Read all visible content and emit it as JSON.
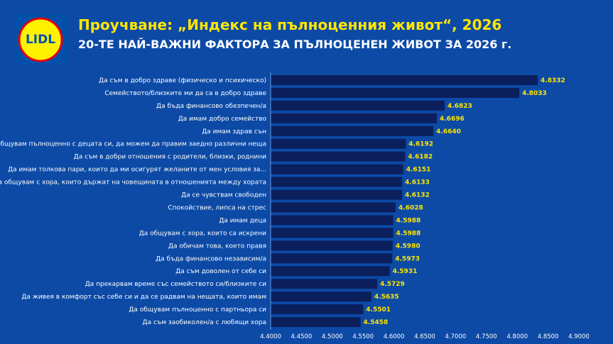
{
  "header": {
    "title": "Проучване: „Индекс на пълноценния живот“, 2026",
    "subtitle": "20-ТЕ НАЙ-ВАЖНИ ФАКТОРА ЗА ПЪЛНОЦЕНЕН ЖИВОТ ЗА 2026 г."
  },
  "logo": {
    "text": "LIDL"
  },
  "colors": {
    "background": "#0c4aa6",
    "bar": "#0b1f5c",
    "value": "#ffe600",
    "title": "#ffe600",
    "text": "#ffffff"
  },
  "chart_data": {
    "type": "bar",
    "orientation": "horizontal",
    "categories": [
      "Да съм в добро здраве (физическо и психическо)",
      "Семейството/близките ми да са в добро здраве",
      "Да бъда финансово обезпечен/а",
      "Да имам добро семейство",
      "Да имам здрав сън",
      "Да общувам пълноценно с децата си, да можем да правим заедно различни неща",
      "Да съм в добри отношения с родители, близки, роднини",
      "Да имам толкова пари, които да ми осигурят желаните от мен условия за...",
      "Да общувам с хора, които държат на човещината в отношенията между хората",
      "Да се чувствам свободен",
      "Спокойствие, липса на стрес",
      "Да имам деца",
      "Да общувам с хора, които са искрени",
      "Да обичам това, което правя",
      "Да бъда финансово независим/а",
      "Да съм доволен от себе си",
      "Да прекарвам време със семейството си/близките си",
      "Да живея в комфорт със себе си и да се радвам на нещата, които имам",
      "Да общувам пълноценно с партньора си",
      "Да съм заобиколен/а с любящи хора"
    ],
    "values": [
      4.8332,
      4.8033,
      4.6823,
      4.6696,
      4.664,
      4.6192,
      4.6182,
      4.6151,
      4.6133,
      4.6132,
      4.6028,
      4.5988,
      4.5988,
      4.598,
      4.5973,
      4.5931,
      4.5729,
      4.5635,
      4.5501,
      4.5458
    ],
    "value_labels": [
      "4.8332",
      "4.8033",
      "4.6823",
      "4.6696",
      "4.6640",
      "4.6192",
      "4.6182",
      "4.6151",
      "4.6133",
      "4.6132",
      "4.6028",
      "4.5988",
      "4.5988",
      "4.5980",
      "4.5973",
      "4.5931",
      "4.5729",
      "4.5635",
      "4.5501",
      "4.5458"
    ],
    "xlim": [
      4.4,
      4.9
    ],
    "xticks": [
      "4.4000",
      "4.4500",
      "4.5000",
      "4.5500",
      "4.6000",
      "4.6500",
      "4.7000",
      "4.7500",
      "4.8000",
      "4.8500",
      "4.9000"
    ],
    "grid": false
  }
}
